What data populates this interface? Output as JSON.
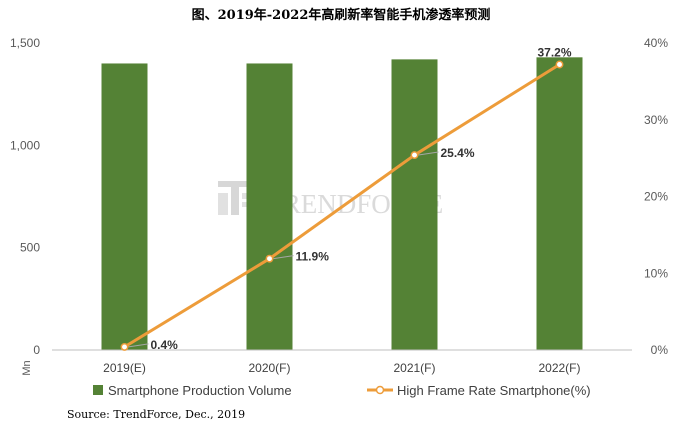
{
  "chart_data": {
    "type": "bar+line",
    "title": "图、2019年-2022年高刷新率智能手机渗透率预测",
    "categories": [
      "2019(E)",
      "2020(F)",
      "2021(F)",
      "2022(F)"
    ],
    "series": [
      {
        "name": "Smartphone Production Volume",
        "type": "bar",
        "axis": "left",
        "color": "#548235",
        "values": [
          1400,
          1400,
          1420,
          1430
        ]
      },
      {
        "name": "High Frame Rate Smartphone(%)",
        "type": "line",
        "axis": "right",
        "color": "#ED9C3A",
        "values": [
          0.4,
          11.9,
          25.4,
          37.2
        ],
        "data_labels": [
          "0.4%",
          "11.9%",
          "25.4%",
          "37.2%"
        ]
      }
    ],
    "y_left": {
      "label": "Mn",
      "min": 0,
      "max": 1500,
      "ticks": [
        0,
        500,
        1000,
        1500
      ],
      "tick_labels": [
        "0",
        "500",
        "1,000",
        "1,500"
      ]
    },
    "y_right": {
      "min": 0,
      "max": 40,
      "ticks": [
        0,
        10,
        20,
        30,
        40
      ],
      "tick_labels": [
        "0%",
        "10%",
        "20%",
        "30%",
        "40%"
      ]
    },
    "grid": false,
    "legend_position": "bottom"
  },
  "watermark": {
    "text_first": "T",
    "text_rest": "RENDFORCE",
    "icon": "trendforce-logo-icon"
  },
  "source": "Source: TrendForce, Dec., 2019"
}
